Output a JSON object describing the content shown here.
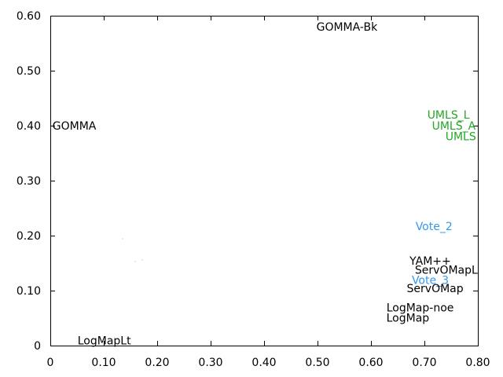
{
  "chart_data": {
    "type": "scatter",
    "title": "",
    "xlabel": "",
    "ylabel": "",
    "xlim": [
      0,
      0.8
    ],
    "ylim": [
      0,
      0.6
    ],
    "x_ticks": [
      0,
      0.1,
      0.2,
      0.3,
      0.4,
      0.5,
      0.6,
      0.7,
      0.8
    ],
    "x_tick_labels": [
      "0",
      "0.10",
      "0.20",
      "0.30",
      "0.40",
      "0.50",
      "0.60",
      "0.70",
      "0.80"
    ],
    "y_ticks": [
      0,
      0.1,
      0.2,
      0.3,
      0.4,
      0.5,
      0.6
    ],
    "y_tick_labels": [
      "0",
      "0.10",
      "0.20",
      "0.30",
      "0.40",
      "0.50",
      "0.60"
    ],
    "grid": false,
    "points": [
      {
        "label": "GOMMA-Bk",
        "x": 0.555,
        "y": 0.58,
        "color": "#000000"
      },
      {
        "label": "GOMMA",
        "x": 0.045,
        "y": 0.4,
        "color": "#000000"
      },
      {
        "label": "UMLS_L",
        "x": 0.745,
        "y": 0.42,
        "color": "#22a722"
      },
      {
        "label": "UMLS_A",
        "x": 0.755,
        "y": 0.4,
        "color": "#22a722"
      },
      {
        "label": "UMLS",
        "x": 0.768,
        "y": 0.381,
        "color": "#22a722"
      },
      {
        "label": "Vote_2",
        "x": 0.718,
        "y": 0.217,
        "color": "#3399ee"
      },
      {
        "label": "YAM++",
        "x": 0.711,
        "y": 0.154,
        "color": "#000000"
      },
      {
        "label": "ServOMapL",
        "x": 0.741,
        "y": 0.138,
        "color": "#000000"
      },
      {
        "label": "Vote_3",
        "x": 0.711,
        "y": 0.119,
        "color": "#3399ee"
      },
      {
        "label": "ServOMap",
        "x": 0.72,
        "y": 0.104,
        "color": "#000000"
      },
      {
        "label": "LogMap-noe",
        "x": 0.692,
        "y": 0.069,
        "color": "#000000"
      },
      {
        "label": "LogMap",
        "x": 0.669,
        "y": 0.051,
        "color": "#000000"
      },
      {
        "label": "LogMapLt",
        "x": 0.101,
        "y": 0.009,
        "color": "#000000"
      }
    ]
  }
}
